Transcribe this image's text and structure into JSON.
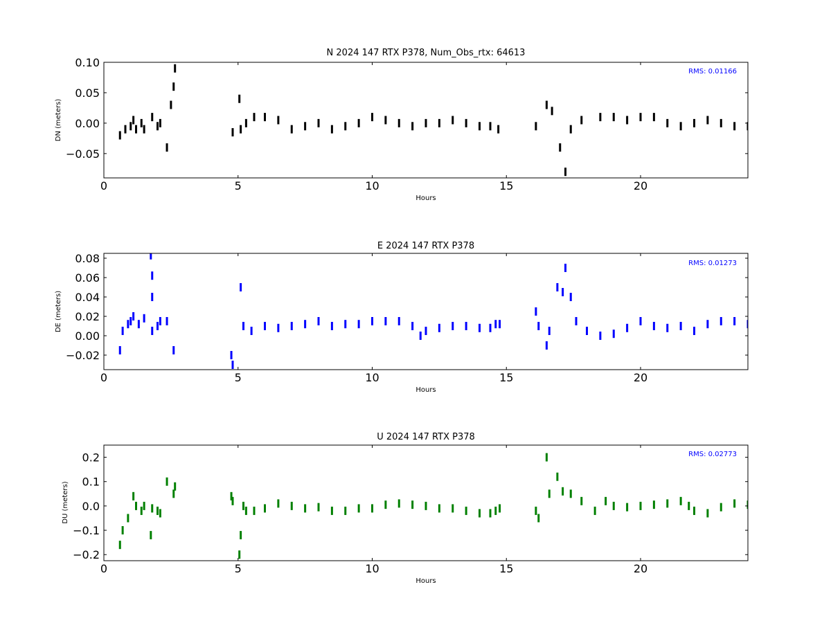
{
  "colors": {
    "north": "#000000",
    "east": "#0000ff",
    "up": "#008000",
    "rms_text": "#0000ff",
    "frame": "#000000"
  },
  "chart_data": [
    {
      "type": "scatter",
      "component": "N",
      "title": "N 2024 147 RTX  P378, Num_Obs_rtx: 64613",
      "xlabel": "Hours",
      "ylabel": "DN (meters)",
      "xlim": [
        0,
        24
      ],
      "ylim": [
        -0.09,
        0.1
      ],
      "xticks": [
        0,
        5,
        10,
        15,
        20
      ],
      "xtick_labels": [
        "0",
        "5",
        "10",
        "15",
        "20"
      ],
      "yticks": [
        -0.05,
        0.0,
        0.05,
        0.1
      ],
      "ytick_labels": [
        "−0.05",
        "0.00",
        "0.05",
        "0.10"
      ],
      "annotation": "RMS:  0.01166",
      "grid": false,
      "series_color": "#000000",
      "points": [
        [
          0.6,
          -0.02
        ],
        [
          0.8,
          -0.01
        ],
        [
          1.0,
          -0.005
        ],
        [
          1.1,
          0.005
        ],
        [
          1.2,
          -0.01
        ],
        [
          1.4,
          0.0
        ],
        [
          1.5,
          -0.01
        ],
        [
          1.8,
          0.01
        ],
        [
          2.0,
          -0.005
        ],
        [
          2.1,
          0.0
        ],
        [
          2.35,
          -0.04
        ],
        [
          2.5,
          0.03
        ],
        [
          2.6,
          0.06
        ],
        [
          2.65,
          0.09
        ],
        [
          4.8,
          -0.015
        ],
        [
          5.05,
          0.04
        ],
        [
          5.1,
          -0.01
        ],
        [
          5.3,
          0.0
        ],
        [
          5.6,
          0.01
        ],
        [
          6.0,
          0.01
        ],
        [
          6.5,
          0.005
        ],
        [
          7.0,
          -0.01
        ],
        [
          7.5,
          -0.005
        ],
        [
          8.0,
          0.0
        ],
        [
          8.5,
          -0.01
        ],
        [
          9.0,
          -0.005
        ],
        [
          9.5,
          0.0
        ],
        [
          10.0,
          0.01
        ],
        [
          10.5,
          0.005
        ],
        [
          11.0,
          0.0
        ],
        [
          11.5,
          -0.005
        ],
        [
          12.0,
          0.0
        ],
        [
          12.5,
          0.0
        ],
        [
          13.0,
          0.005
        ],
        [
          13.5,
          0.0
        ],
        [
          14.0,
          -0.005
        ],
        [
          14.4,
          -0.005
        ],
        [
          14.7,
          -0.01
        ],
        [
          16.1,
          -0.005
        ],
        [
          16.5,
          0.03
        ],
        [
          16.7,
          0.02
        ],
        [
          17.0,
          -0.04
        ],
        [
          17.2,
          -0.08
        ],
        [
          17.4,
          -0.01
        ],
        [
          17.8,
          0.005
        ],
        [
          18.5,
          0.01
        ],
        [
          19.0,
          0.01
        ],
        [
          19.5,
          0.005
        ],
        [
          20.0,
          0.01
        ],
        [
          20.5,
          0.01
        ],
        [
          21.0,
          0.0
        ],
        [
          21.5,
          -0.005
        ],
        [
          22.0,
          0.0
        ],
        [
          22.5,
          0.005
        ],
        [
          23.0,
          0.0
        ],
        [
          23.5,
          -0.005
        ],
        [
          24.0,
          -0.005
        ]
      ]
    },
    {
      "type": "scatter",
      "component": "E",
      "title": "E 2024 147 RTX  P378",
      "xlabel": "Hours",
      "ylabel": "DE (meters)",
      "xlim": [
        0,
        24
      ],
      "ylim": [
        -0.035,
        0.085
      ],
      "xticks": [
        0,
        5,
        10,
        15,
        20
      ],
      "xtick_labels": [
        "0",
        "5",
        "10",
        "15",
        "20"
      ],
      "yticks": [
        -0.02,
        0.0,
        0.02,
        0.04,
        0.06,
        0.08
      ],
      "ytick_labels": [
        "−0.02",
        "0.00",
        "0.02",
        "0.04",
        "0.06",
        "0.08"
      ],
      "annotation": "RMS:  0.01273",
      "grid": false,
      "series_color": "#0000ff",
      "points": [
        [
          0.6,
          -0.015
        ],
        [
          0.7,
          0.005
        ],
        [
          0.9,
          0.012
        ],
        [
          1.0,
          0.015
        ],
        [
          1.1,
          0.02
        ],
        [
          1.3,
          0.012
        ],
        [
          1.5,
          0.018
        ],
        [
          1.8,
          0.005
        ],
        [
          1.8,
          0.04
        ],
        [
          1.8,
          0.062
        ],
        [
          1.75,
          0.083
        ],
        [
          2.0,
          0.01
        ],
        [
          2.1,
          0.015
        ],
        [
          2.35,
          0.015
        ],
        [
          2.6,
          -0.015
        ],
        [
          4.75,
          -0.02
        ],
        [
          4.8,
          -0.03
        ],
        [
          5.1,
          0.05
        ],
        [
          5.2,
          0.01
        ],
        [
          5.5,
          0.005
        ],
        [
          6.0,
          0.01
        ],
        [
          6.5,
          0.008
        ],
        [
          7.0,
          0.01
        ],
        [
          7.5,
          0.012
        ],
        [
          8.0,
          0.015
        ],
        [
          8.5,
          0.01
        ],
        [
          9.0,
          0.012
        ],
        [
          9.5,
          0.012
        ],
        [
          10.0,
          0.015
        ],
        [
          10.5,
          0.015
        ],
        [
          11.0,
          0.015
        ],
        [
          11.5,
          0.01
        ],
        [
          11.8,
          0.0
        ],
        [
          12.0,
          0.005
        ],
        [
          12.5,
          0.008
        ],
        [
          13.0,
          0.01
        ],
        [
          13.5,
          0.01
        ],
        [
          14.0,
          0.008
        ],
        [
          14.4,
          0.008
        ],
        [
          14.6,
          0.012
        ],
        [
          14.75,
          0.012
        ],
        [
          16.1,
          0.025
        ],
        [
          16.2,
          0.01
        ],
        [
          16.5,
          -0.01
        ],
        [
          16.6,
          0.005
        ],
        [
          16.9,
          0.05
        ],
        [
          17.1,
          0.045
        ],
        [
          17.2,
          0.07
        ],
        [
          17.4,
          0.04
        ],
        [
          17.6,
          0.015
        ],
        [
          18.0,
          0.005
        ],
        [
          18.5,
          0.0
        ],
        [
          19.0,
          0.002
        ],
        [
          19.5,
          0.008
        ],
        [
          20.0,
          0.015
        ],
        [
          20.5,
          0.01
        ],
        [
          21.0,
          0.008
        ],
        [
          21.5,
          0.01
        ],
        [
          22.0,
          0.005
        ],
        [
          22.5,
          0.012
        ],
        [
          23.0,
          0.015
        ],
        [
          23.5,
          0.015
        ],
        [
          24.0,
          0.012
        ]
      ]
    },
    {
      "type": "scatter",
      "component": "U",
      "title": "U 2024 147 RTX  P378",
      "xlabel": "Hours",
      "ylabel": "DU (meters)",
      "xlim": [
        0,
        24
      ],
      "ylim": [
        -0.225,
        0.25
      ],
      "xticks": [
        0,
        5,
        10,
        15,
        20
      ],
      "xtick_labels": [
        "0",
        "5",
        "10",
        "15",
        "20"
      ],
      "yticks": [
        -0.2,
        -0.1,
        0.0,
        0.1,
        0.2
      ],
      "ytick_labels": [
        "−0.2",
        "−0.1",
        "0.0",
        "0.1",
        "0.2"
      ],
      "annotation": "RMS:  0.02773",
      "grid": false,
      "series_color": "#008000",
      "points": [
        [
          0.6,
          -0.16
        ],
        [
          0.7,
          -0.1
        ],
        [
          0.9,
          -0.05
        ],
        [
          1.1,
          0.04
        ],
        [
          1.2,
          0.0
        ],
        [
          1.4,
          -0.02
        ],
        [
          1.5,
          0.0
        ],
        [
          1.75,
          -0.12
        ],
        [
          1.8,
          -0.01
        ],
        [
          2.0,
          -0.02
        ],
        [
          2.1,
          -0.03
        ],
        [
          2.35,
          0.1
        ],
        [
          2.6,
          0.05
        ],
        [
          2.65,
          0.08
        ],
        [
          4.75,
          0.04
        ],
        [
          4.8,
          0.02
        ],
        [
          5.05,
          -0.2
        ],
        [
          5.1,
          -0.12
        ],
        [
          5.2,
          0.0
        ],
        [
          5.3,
          -0.02
        ],
        [
          5.6,
          -0.02
        ],
        [
          6.0,
          -0.01
        ],
        [
          6.5,
          0.01
        ],
        [
          7.0,
          0.0
        ],
        [
          7.5,
          -0.01
        ],
        [
          8.0,
          -0.005
        ],
        [
          8.5,
          -0.02
        ],
        [
          9.0,
          -0.02
        ],
        [
          9.5,
          -0.01
        ],
        [
          10.0,
          -0.01
        ],
        [
          10.5,
          0.005
        ],
        [
          11.0,
          0.01
        ],
        [
          11.5,
          0.005
        ],
        [
          12.0,
          0.0
        ],
        [
          12.5,
          -0.01
        ],
        [
          13.0,
          -0.01
        ],
        [
          13.5,
          -0.02
        ],
        [
          14.0,
          -0.03
        ],
        [
          14.4,
          -0.03
        ],
        [
          14.6,
          -0.02
        ],
        [
          14.75,
          -0.01
        ],
        [
          16.1,
          -0.02
        ],
        [
          16.2,
          -0.05
        ],
        [
          16.5,
          0.2
        ],
        [
          16.6,
          0.05
        ],
        [
          16.9,
          0.12
        ],
        [
          17.1,
          0.06
        ],
        [
          17.4,
          0.05
        ],
        [
          17.8,
          0.02
        ],
        [
          18.3,
          -0.02
        ],
        [
          18.7,
          0.02
        ],
        [
          19.0,
          0.0
        ],
        [
          19.5,
          -0.005
        ],
        [
          20.0,
          0.0
        ],
        [
          20.5,
          0.005
        ],
        [
          21.0,
          0.01
        ],
        [
          21.5,
          0.02
        ],
        [
          21.8,
          0.0
        ],
        [
          22.0,
          -0.02
        ],
        [
          22.5,
          -0.03
        ],
        [
          23.0,
          -0.005
        ],
        [
          23.5,
          0.01
        ],
        [
          24.0,
          0.005
        ]
      ]
    }
  ]
}
